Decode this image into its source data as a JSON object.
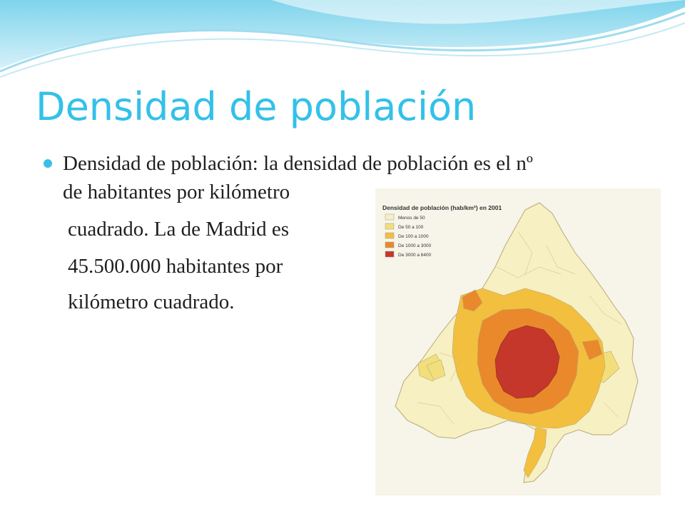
{
  "slide": {
    "title": "Densidad de población",
    "body_lines": [
      "Densidad de población: la densidad de población es el  nº",
      "de habitantes por kilómetro",
      "cuadrado. La de Madrid es",
      "45.500.000 habitantes por",
      "kilómetro cuadrado."
    ],
    "accent_color": "#33c1e8"
  },
  "map": {
    "title": "Densidad de población (hab/km²) en 2001",
    "legend": [
      {
        "label": "Menos de 50",
        "color": "#f6f0c2"
      },
      {
        "label": "De 50 a 100",
        "color": "#f2df7c"
      },
      {
        "label": "De 100 a 1000",
        "color": "#f3bf3e"
      },
      {
        "label": "De 1000 a 3000",
        "color": "#e9892b"
      },
      {
        "label": "De 3000 a 6400",
        "color": "#c4372a"
      }
    ]
  }
}
